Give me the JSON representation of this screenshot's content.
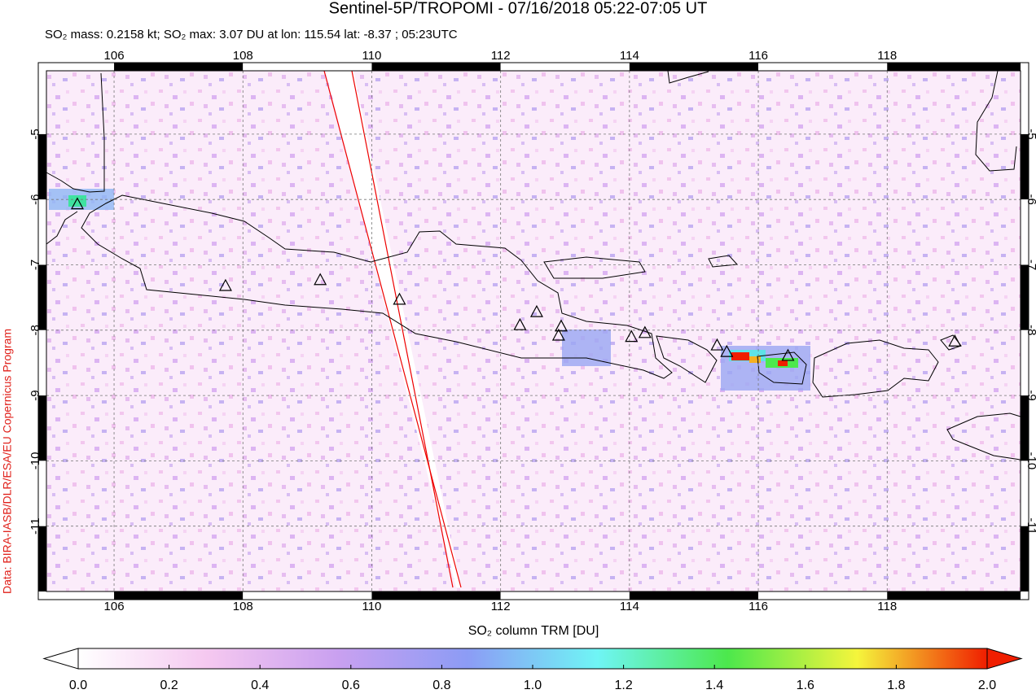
{
  "chart_data": {
    "type": "map",
    "title": "Sentinel-5P/TROPOMI - 07/16/2018 05:22-07:05 UT",
    "subtitle": "SO₂ mass: 0.2158 kt; SO₂ max: 3.07 DU at lon: 115.54 lat: -8.37 ; 05:23UTC",
    "credit": "Data: BIRA-IASB/DLR/ESA/EU Copernicus Program",
    "xlim": [
      104.95,
      120.07
    ],
    "ylim": [
      -12.0,
      -4.03
    ],
    "xticks": [
      106,
      108,
      110,
      112,
      114,
      116,
      118
    ],
    "yticks": [
      -5,
      -6,
      -7,
      -8,
      -9,
      -10,
      -11
    ],
    "grid": true,
    "volcanoes": {
      "x": [
        105.43,
        107.73,
        109.2,
        110.43,
        112.3,
        112.56,
        112.94,
        112.9,
        114.03,
        114.24,
        115.36,
        115.51,
        116.46,
        119.05
      ],
      "y": [
        -6.08,
        -7.33,
        -7.24,
        -7.54,
        -7.93,
        -7.73,
        -7.95,
        -8.09,
        -8.11,
        -8.05,
        -8.24,
        -8.34,
        -8.4,
        -8.18
      ]
    },
    "colorbar": {
      "label": "SO₂ column TRM [DU]",
      "lim": [
        0,
        2
      ],
      "colors": [
        "#ffffff",
        "#f5c8f0",
        "#c9a0f0",
        "#8c9cf5",
        "#6ff5f5",
        "#4ce84c",
        "#f5f53c",
        "#f01e00"
      ],
      "ticks": [
        {
          "value": 0,
          "label": "0.0"
        },
        0.2,
        0.4,
        0.6,
        0.8,
        {
          "value": 1,
          "label": "1.0"
        },
        1.2,
        1.4,
        1.6,
        1.8,
        {
          "value": 2,
          "label": "2.0"
        }
      ]
    }
  }
}
